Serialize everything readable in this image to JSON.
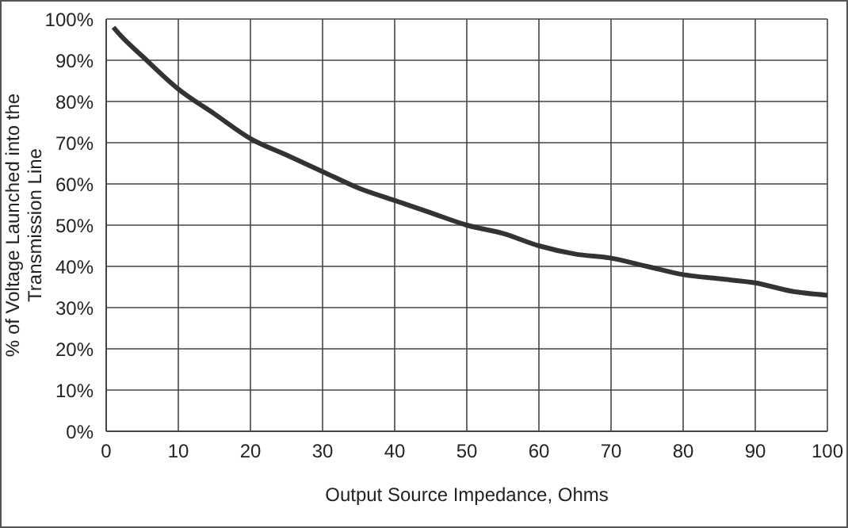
{
  "chart_data": {
    "type": "line",
    "xlabel": "Output Source Impedance, Ohms",
    "ylabel": "% of Voltage Launched into the Transmission Line",
    "x": [
      1,
      2,
      5,
      10,
      15,
      20,
      25,
      30,
      35,
      40,
      45,
      50,
      55,
      60,
      65,
      70,
      75,
      80,
      85,
      90,
      95,
      100
    ],
    "series": [
      {
        "color": "#333333",
        "values": [
          98,
          96,
          91,
          83,
          77,
          71,
          67,
          63,
          59,
          56,
          53,
          50,
          48,
          45,
          43,
          42,
          40,
          38,
          37,
          36,
          34,
          33
        ]
      }
    ],
    "xlim": [
      0,
      100
    ],
    "xticks": [
      0,
      10,
      20,
      30,
      40,
      50,
      60,
      70,
      80,
      90,
      100
    ],
    "ylim": [
      0,
      100
    ],
    "yticks": [
      {
        "value": 0,
        "label": "0%"
      },
      {
        "value": 10,
        "label": "10%"
      },
      {
        "value": 20,
        "label": "20%"
      },
      {
        "value": 30,
        "label": "30%"
      },
      {
        "value": 40,
        "label": "40%"
      },
      {
        "value": 50,
        "label": "50%"
      },
      {
        "value": 60,
        "label": "60%"
      },
      {
        "value": 70,
        "label": "70%"
      },
      {
        "value": 80,
        "label": "80%"
      },
      {
        "value": 90,
        "label": "90%"
      },
      {
        "value": 100,
        "label": "100%"
      }
    ],
    "grid": true,
    "legend": false,
    "marker": "none",
    "line_style": "solid"
  }
}
